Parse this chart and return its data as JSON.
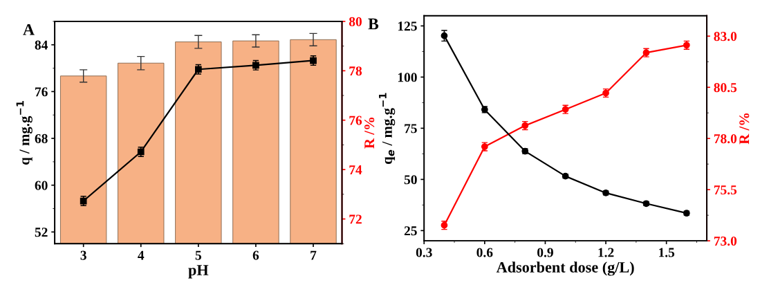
{
  "chart_data": [
    {
      "type": "bar",
      "categories": [
        "3",
        "4",
        "5",
        "6",
        "7"
      ],
      "xlabel": "pH",
      "ylabel": "q / mg.g$^{−1}$",
      "y2label": "R /%",
      "annotations": [
        "A"
      ],
      "ylim": [
        50,
        88
      ],
      "yticks": [
        52,
        60,
        68,
        76,
        84
      ],
      "y2lim": [
        71,
        80
      ],
      "y2ticks": [
        72,
        74,
        76,
        78,
        80
      ],
      "marker": "square",
      "grid": false,
      "legend": false,
      "series": [
        {
          "axis": "y2",
          "color": "#f7b185",
          "values": [
            77.79,
            78.31,
            79.17,
            79.21,
            79.26
          ],
          "errors": [
            0.25,
            0.27,
            0.26,
            0.25,
            0.25
          ]
        },
        {
          "type": "line",
          "axis": "y",
          "color": "#000000",
          "values": [
            57.3,
            65.7,
            79.8,
            80.5,
            81.3
          ],
          "errors": [
            0.8,
            0.8,
            0.8,
            0.8,
            0.8
          ]
        }
      ]
    },
    {
      "type": "line",
      "x": [
        0.4,
        0.6,
        0.8,
        1.0,
        1.2,
        1.4,
        1.6
      ],
      "xlabel": "Adsorbent dose (g/L)",
      "ylabel": "q$_{e}$ / mg.g$^{−1}$",
      "y2label": "R /%",
      "annotations": [
        "B"
      ],
      "xlim": [
        0.3,
        1.7
      ],
      "xticks": [
        {
          "value": 0.3,
          "label": "0.3"
        },
        {
          "value": 0.6,
          "label": "0.6"
        },
        {
          "value": 0.9,
          "label": "0.9"
        },
        {
          "value": 1.2,
          "label": "1.2"
        },
        {
          "value": 1.5,
          "label": "1.5"
        }
      ],
      "ylim": [
        20,
        130
      ],
      "yticks": [
        25,
        50,
        75,
        100,
        125
      ],
      "y2lim": [
        73,
        84
      ],
      "y2ticks": [
        {
          "value": 73.0,
          "label": "73.0"
        },
        {
          "value": 75.5,
          "label": "75.5"
        },
        {
          "value": 78.0,
          "label": "78.0"
        },
        {
          "value": 80.5,
          "label": "80.5"
        },
        {
          "value": 83.0,
          "label": "83.0"
        }
      ],
      "marker": "circle",
      "grid": false,
      "legend": false,
      "series": [
        {
          "axis": "y",
          "color": "#000000",
          "values": [
            120.2,
            84.1,
            63.8,
            51.6,
            43.4,
            38.2,
            33.5
          ],
          "errors": [
            2.6,
            1.5,
            1.2,
            1.0,
            1.0,
            1.0,
            1.0
          ]
        },
        {
          "axis": "y2",
          "color": "#ff0000",
          "values": [
            73.76,
            77.6,
            78.63,
            79.42,
            80.22,
            82.19,
            82.56
          ],
          "errors": [
            0.2,
            0.2,
            0.2,
            0.2,
            0.2,
            0.2,
            0.2
          ]
        }
      ]
    }
  ]
}
